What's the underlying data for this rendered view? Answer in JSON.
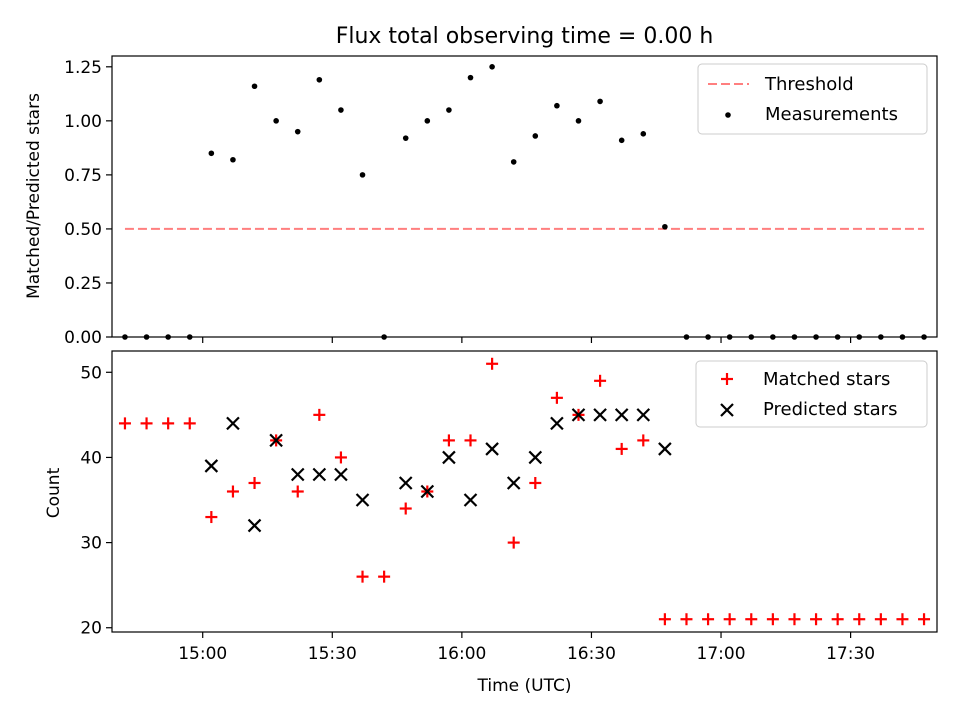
{
  "chart_data": [
    {
      "type": "scatter",
      "title": "Flux total observing time = 0.00 h",
      "xlabel": "",
      "ylabel": "Matched/Predicted stars",
      "ylim": [
        0,
        1.3
      ],
      "yticks": [
        "0.00",
        "0.25",
        "0.50",
        "0.75",
        "1.00",
        "1.25"
      ],
      "threshold": {
        "name": "Threshold",
        "value": 0.5,
        "x": [
          "14:42",
          "17:47"
        ],
        "color": "#ff7f7f"
      },
      "series": [
        {
          "name": "Measurements",
          "color": "#000000",
          "points": [
            [
              "14:42",
              0.0
            ],
            [
              "14:47",
              0.0
            ],
            [
              "14:52",
              0.0
            ],
            [
              "14:57",
              0.0
            ],
            [
              "15:02",
              0.85
            ],
            [
              "15:07",
              0.82
            ],
            [
              "15:12",
              1.16
            ],
            [
              "15:17",
              1.0
            ],
            [
              "15:22",
              0.95
            ],
            [
              "15:27",
              1.19
            ],
            [
              "15:32",
              1.05
            ],
            [
              "15:37",
              0.75
            ],
            [
              "15:42",
              0.0
            ],
            [
              "15:47",
              0.92
            ],
            [
              "15:52",
              1.0
            ],
            [
              "15:57",
              1.05
            ],
            [
              "16:02",
              1.2
            ],
            [
              "16:07",
              1.25
            ],
            [
              "16:12",
              0.81
            ],
            [
              "16:17",
              0.93
            ],
            [
              "16:22",
              1.07
            ],
            [
              "16:27",
              1.0
            ],
            [
              "16:32",
              1.09
            ],
            [
              "16:37",
              0.91
            ],
            [
              "16:42",
              0.94
            ],
            [
              "16:47",
              0.51
            ],
            [
              "16:52",
              0.0
            ],
            [
              "16:57",
              0.0
            ],
            [
              "17:02",
              0.0
            ],
            [
              "17:07",
              0.0
            ],
            [
              "17:12",
              0.0
            ],
            [
              "17:17",
              0.0
            ],
            [
              "17:22",
              0.0
            ],
            [
              "17:27",
              0.0
            ],
            [
              "17:32",
              0.0
            ],
            [
              "17:37",
              0.0
            ],
            [
              "17:42",
              0.0
            ],
            [
              "17:47",
              0.0
            ]
          ]
        }
      ],
      "legend": "upper right",
      "grid": false
    },
    {
      "type": "scatter",
      "title": "",
      "xlabel": "Time (UTC)",
      "ylabel": "Count",
      "ylim": [
        19.5,
        52.5
      ],
      "yticks": [
        "20",
        "30",
        "40",
        "50"
      ],
      "xticks": [
        "15:00",
        "15:30",
        "16:00",
        "16:30",
        "17:00",
        "17:30"
      ],
      "series": [
        {
          "name": "Matched stars",
          "marker": "+",
          "color": "#ff0000",
          "points": [
            [
              "14:42",
              44
            ],
            [
              "14:47",
              44
            ],
            [
              "14:52",
              44
            ],
            [
              "14:57",
              44
            ],
            [
              "15:02",
              33
            ],
            [
              "15:07",
              36
            ],
            [
              "15:12",
              37
            ],
            [
              "15:17",
              42
            ],
            [
              "15:22",
              36
            ],
            [
              "15:27",
              45
            ],
            [
              "15:32",
              40
            ],
            [
              "15:37",
              26
            ],
            [
              "15:42",
              26
            ],
            [
              "15:47",
              34
            ],
            [
              "15:52",
              36
            ],
            [
              "15:57",
              42
            ],
            [
              "16:02",
              42
            ],
            [
              "16:07",
              51
            ],
            [
              "16:12",
              30
            ],
            [
              "16:17",
              37
            ],
            [
              "16:22",
              47
            ],
            [
              "16:27",
              45
            ],
            [
              "16:32",
              49
            ],
            [
              "16:37",
              41
            ],
            [
              "16:42",
              42
            ],
            [
              "16:47",
              21
            ],
            [
              "16:52",
              21
            ],
            [
              "16:57",
              21
            ],
            [
              "17:02",
              21
            ],
            [
              "17:07",
              21
            ],
            [
              "17:12",
              21
            ],
            [
              "17:17",
              21
            ],
            [
              "17:22",
              21
            ],
            [
              "17:27",
              21
            ],
            [
              "17:32",
              21
            ],
            [
              "17:37",
              21
            ],
            [
              "17:42",
              21
            ],
            [
              "17:47",
              21
            ]
          ]
        },
        {
          "name": "Predicted stars",
          "marker": "x",
          "color": "#000000",
          "points": [
            [
              "15:02",
              39
            ],
            [
              "15:07",
              44
            ],
            [
              "15:12",
              32
            ],
            [
              "15:17",
              42
            ],
            [
              "15:22",
              38
            ],
            [
              "15:27",
              38
            ],
            [
              "15:32",
              38
            ],
            [
              "15:37",
              35
            ],
            [
              "15:47",
              37
            ],
            [
              "15:52",
              36
            ],
            [
              "15:57",
              40
            ],
            [
              "16:02",
              35
            ],
            [
              "16:07",
              41
            ],
            [
              "16:12",
              37
            ],
            [
              "16:17",
              40
            ],
            [
              "16:22",
              44
            ],
            [
              "16:27",
              45
            ],
            [
              "16:32",
              45
            ],
            [
              "16:37",
              45
            ],
            [
              "16:42",
              45
            ],
            [
              "16:47",
              41
            ]
          ]
        }
      ],
      "legend": "upper right",
      "grid": false
    }
  ]
}
